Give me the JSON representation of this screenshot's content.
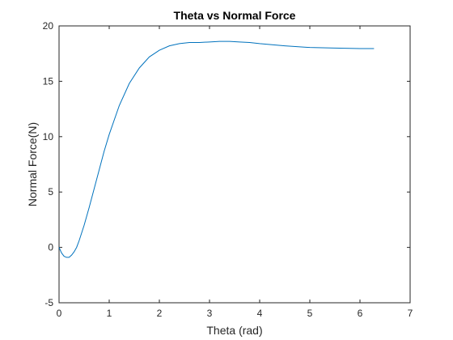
{
  "chart_data": {
    "type": "line",
    "title": "Theta vs Normal Force",
    "xlabel": "Theta (rad)",
    "ylabel": "Normal Force(N)",
    "xlim": [
      0,
      7
    ],
    "ylim": [
      -5,
      20
    ],
    "xticks": [
      "0",
      "1",
      "2",
      "3",
      "4",
      "5",
      "6",
      "7"
    ],
    "yticks": [
      "-5",
      "0",
      "5",
      "10",
      "15",
      "20"
    ],
    "grid": false,
    "legend": "none",
    "colors": {
      "line": "#0072BD",
      "axes": "#262626"
    },
    "series": [
      {
        "x": [
          0,
          0.05,
          0.1,
          0.15,
          0.2,
          0.25,
          0.3,
          0.35,
          0.4,
          0.5,
          0.6,
          0.7,
          0.8,
          0.9,
          1.0,
          1.2,
          1.4,
          1.6,
          1.8,
          2.0,
          2.2,
          2.4,
          2.6,
          2.8,
          3.0,
          3.2,
          3.4,
          3.6,
          3.8,
          4.0,
          4.5,
          5.0,
          5.5,
          6.0,
          6.28
        ],
        "y": [
          0,
          -0.5,
          -0.8,
          -0.9,
          -0.9,
          -0.7,
          -0.4,
          0.0,
          0.6,
          2.0,
          3.6,
          5.3,
          7.0,
          8.7,
          10.2,
          12.8,
          14.8,
          16.2,
          17.2,
          17.8,
          18.2,
          18.4,
          18.5,
          18.5,
          18.55,
          18.6,
          18.6,
          18.55,
          18.5,
          18.4,
          18.2,
          18.05,
          18.0,
          17.95,
          17.95
        ]
      }
    ]
  }
}
